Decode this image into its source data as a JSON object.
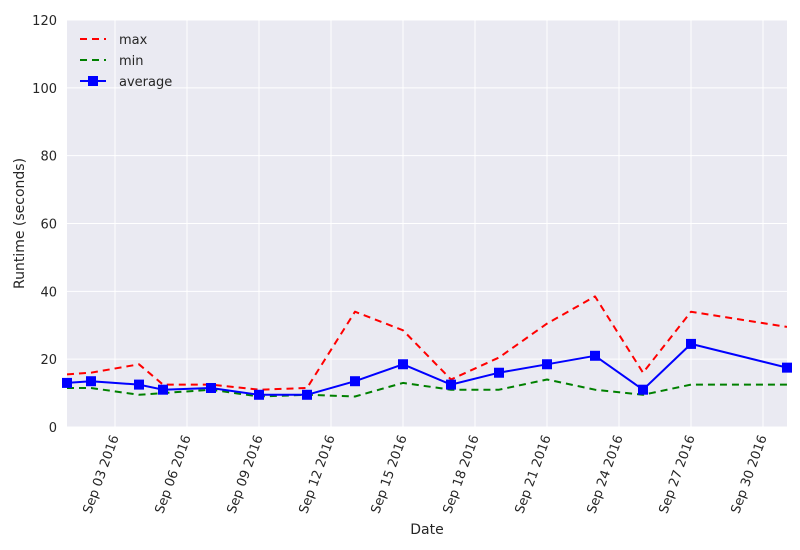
{
  "chart_data": {
    "type": "line",
    "title": "",
    "xlabel": "Date",
    "ylabel": "Runtime (seconds)",
    "ylim": [
      0,
      120
    ],
    "yticks": [
      0,
      20,
      40,
      60,
      80,
      100,
      120
    ],
    "xlim": [
      "2016-09-01",
      "2016-10-01"
    ],
    "x_ticks": [
      {
        "date": "2016-09-03",
        "label": "Sep 03 2016"
      },
      {
        "date": "2016-09-06",
        "label": "Sep 06 2016"
      },
      {
        "date": "2016-09-09",
        "label": "Sep 09 2016"
      },
      {
        "date": "2016-09-12",
        "label": "Sep 12 2016"
      },
      {
        "date": "2016-09-15",
        "label": "Sep 15 2016"
      },
      {
        "date": "2016-09-18",
        "label": "Sep 18 2016"
      },
      {
        "date": "2016-09-21",
        "label": "Sep 21 2016"
      },
      {
        "date": "2016-09-24",
        "label": "Sep 24 2016"
      },
      {
        "date": "2016-09-27",
        "label": "Sep 27 2016"
      },
      {
        "date": "2016-09-30",
        "label": "Sep 30 2016"
      }
    ],
    "grid": true,
    "legend_position": "top-left",
    "background_color": "#eaeaf2",
    "series": [
      {
        "name": "max",
        "color": "#ff0000",
        "style": "dashed",
        "marker": "none",
        "points": [
          [
            "2016-09-01",
            15.5
          ],
          [
            "2016-09-02",
            16.0
          ],
          [
            "2016-09-04",
            18.5
          ],
          [
            "2016-09-05",
            12.5
          ],
          [
            "2016-09-07",
            12.5
          ],
          [
            "2016-09-09",
            11.0
          ],
          [
            "2016-09-11",
            11.5
          ],
          [
            "2016-09-13",
            34.0
          ],
          [
            "2016-09-15",
            28.5
          ],
          [
            "2016-09-17",
            14.0
          ],
          [
            "2016-09-19",
            20.5
          ],
          [
            "2016-09-21",
            30.5
          ],
          [
            "2016-09-23",
            38.5
          ],
          [
            "2016-09-25",
            16.0
          ],
          [
            "2016-09-27",
            34.0
          ],
          [
            "2016-10-01",
            29.5
          ]
        ]
      },
      {
        "name": "min",
        "color": "#008000",
        "style": "dashed",
        "marker": "none",
        "points": [
          [
            "2016-09-01",
            11.5
          ],
          [
            "2016-09-02",
            11.5
          ],
          [
            "2016-09-04",
            9.5
          ],
          [
            "2016-09-05",
            10.0
          ],
          [
            "2016-09-07",
            11.0
          ],
          [
            "2016-09-09",
            9.0
          ],
          [
            "2016-09-11",
            9.5
          ],
          [
            "2016-09-13",
            9.0
          ],
          [
            "2016-09-15",
            13.0
          ],
          [
            "2016-09-17",
            11.0
          ],
          [
            "2016-09-19",
            11.0
          ],
          [
            "2016-09-21",
            14.0
          ],
          [
            "2016-09-23",
            11.0
          ],
          [
            "2016-09-25",
            9.5
          ],
          [
            "2016-09-27",
            12.5
          ],
          [
            "2016-10-01",
            12.5
          ]
        ]
      },
      {
        "name": "average",
        "color": "#0000ff",
        "style": "solid",
        "marker": "square",
        "points": [
          [
            "2016-09-01",
            13.0
          ],
          [
            "2016-09-02",
            13.5
          ],
          [
            "2016-09-04",
            12.5
          ],
          [
            "2016-09-05",
            11.0
          ],
          [
            "2016-09-07",
            11.5
          ],
          [
            "2016-09-09",
            9.5
          ],
          [
            "2016-09-11",
            9.5
          ],
          [
            "2016-09-13",
            13.5
          ],
          [
            "2016-09-15",
            18.5
          ],
          [
            "2016-09-17",
            12.5
          ],
          [
            "2016-09-19",
            16.0
          ],
          [
            "2016-09-21",
            18.5
          ],
          [
            "2016-09-23",
            21.0
          ],
          [
            "2016-09-25",
            11.0
          ],
          [
            "2016-09-27",
            24.5
          ],
          [
            "2016-10-01",
            17.5
          ]
        ]
      }
    ]
  }
}
